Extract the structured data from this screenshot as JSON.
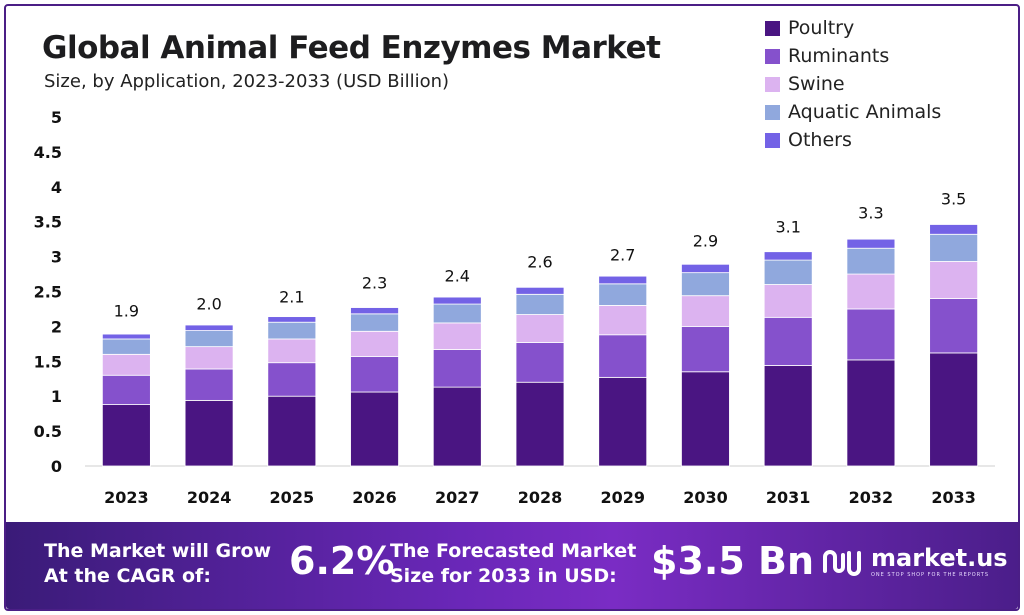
{
  "header": {
    "title": "Global Animal Feed Enzymes Market",
    "subtitle": "Size, by Application, 2023-2033 (USD Billion)"
  },
  "legend": {
    "items": [
      {
        "label": "Poultry",
        "color": "#4a1582"
      },
      {
        "label": "Ruminants",
        "color": "#8551cc"
      },
      {
        "label": "Swine",
        "color": "#dcb3f0"
      },
      {
        "label": "Aquatic Animals",
        "color": "#90a8dd"
      },
      {
        "label": "Others",
        "color": "#7362e6"
      }
    ]
  },
  "chart_data": {
    "type": "bar",
    "stacked": true,
    "title": "Global Animal Feed Enzymes Market",
    "subtitle": "Size, by Application, 2023-2033 (USD Billion)",
    "categories": [
      "2023",
      "2024",
      "2025",
      "2026",
      "2027",
      "2028",
      "2029",
      "2030",
      "2031",
      "2032",
      "2033"
    ],
    "series": [
      {
        "name": "Poultry",
        "color": "#4a1582",
        "values": [
          0.88,
          0.94,
          1.0,
          1.06,
          1.13,
          1.2,
          1.27,
          1.35,
          1.44,
          1.52,
          1.62
        ]
      },
      {
        "name": "Ruminants",
        "color": "#8551cc",
        "values": [
          0.42,
          0.45,
          0.48,
          0.51,
          0.54,
          0.57,
          0.61,
          0.65,
          0.69,
          0.73,
          0.78
        ]
      },
      {
        "name": "Swine",
        "color": "#dcb3f0",
        "values": [
          0.3,
          0.32,
          0.34,
          0.36,
          0.38,
          0.4,
          0.42,
          0.44,
          0.47,
          0.5,
          0.53
        ]
      },
      {
        "name": "Aquatic Animals",
        "color": "#90a8dd",
        "values": [
          0.22,
          0.23,
          0.24,
          0.25,
          0.27,
          0.29,
          0.31,
          0.33,
          0.35,
          0.37,
          0.39
        ]
      },
      {
        "name": "Others",
        "color": "#7362e6",
        "values": [
          0.07,
          0.08,
          0.08,
          0.09,
          0.1,
          0.1,
          0.11,
          0.12,
          0.12,
          0.13,
          0.14
        ]
      }
    ],
    "totals": [
      1.9,
      2.0,
      2.1,
      2.3,
      2.4,
      2.6,
      2.7,
      2.9,
      3.1,
      3.3,
      3.5
    ],
    "total_labels": [
      "1.9",
      "2.0",
      "2.1",
      "2.3",
      "2.4",
      "2.6",
      "2.7",
      "2.9",
      "3.1",
      "3.3",
      "3.5"
    ],
    "yticks": [
      0,
      0.5,
      1,
      1.5,
      2,
      2.5,
      3,
      3.5,
      4,
      4.5,
      5
    ],
    "ytick_labels": [
      "0",
      "0.5",
      "1",
      "1.5",
      "2",
      "2.5",
      "3",
      "3.5",
      "4",
      "4.5",
      "5"
    ],
    "ylim": [
      0,
      5
    ],
    "xlabel": "",
    "ylabel": "",
    "grid": false,
    "legend_position": "top-right"
  },
  "footer": {
    "cagr_label_line1": "The Market will Grow",
    "cagr_label_line2": "At the CAGR of:",
    "cagr_value": "6.2%",
    "forecast_label_line1": "The Forecasted Market",
    "forecast_label_line2": "Size for 2033 in USD:",
    "forecast_value": "$3.5 Bn",
    "brand_name": "market.us",
    "brand_tagline": "ONE STOP SHOP FOR THE REPORTS"
  }
}
